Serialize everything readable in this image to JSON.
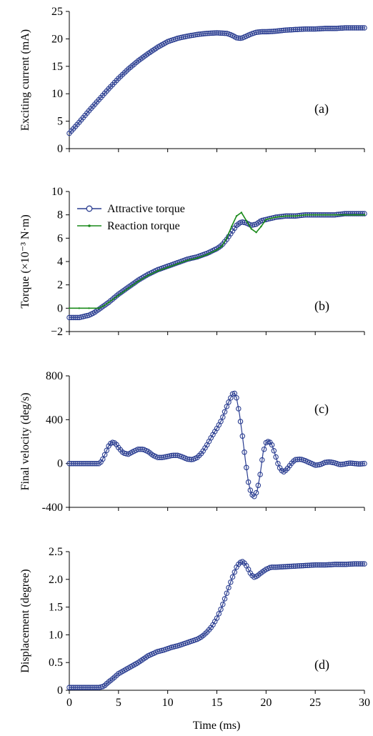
{
  "x_axis": {
    "label": "Time (ms)",
    "min": 0,
    "max": 30,
    "ticks": [
      0,
      5,
      10,
      15,
      20,
      25,
      30
    ]
  },
  "colors": {
    "attractive": "#2b3e91",
    "reaction": "#1a8a1a"
  },
  "chart_data": [
    {
      "type": "scatter",
      "panel": "(a)",
      "ylabel": "Exciting current (mA)",
      "ylim": [
        0,
        25
      ],
      "yticks": [
        0,
        5,
        10,
        15,
        20,
        25
      ],
      "ytick_labels": [
        "0",
        "5",
        "10",
        "15",
        "20",
        "25"
      ],
      "series": [
        {
          "style": "circles-line",
          "x": [
            0,
            0.5,
            1,
            2,
            3,
            4,
            5,
            6,
            7,
            8,
            9,
            10,
            11,
            12,
            13,
            14,
            15,
            16,
            16.5,
            17,
            17.5,
            18,
            18.5,
            19,
            19.5,
            20,
            21,
            22,
            23,
            24,
            25,
            26,
            27,
            28,
            29,
            30
          ],
          "y": [
            2.8,
            3.8,
            4.8,
            6.9,
            8.9,
            10.9,
            12.8,
            14.5,
            16.0,
            17.3,
            18.5,
            19.5,
            20.1,
            20.5,
            20.8,
            21.0,
            21.1,
            21.0,
            20.7,
            20.2,
            20.1,
            20.5,
            20.9,
            21.2,
            21.3,
            21.3,
            21.4,
            21.6,
            21.7,
            21.8,
            21.8,
            21.9,
            21.9,
            22.0,
            22.0,
            22.0
          ]
        }
      ]
    },
    {
      "type": "line",
      "panel": "(b)",
      "ylabel": "Torque (×10⁻³ N·m)",
      "ylim": [
        -2,
        10
      ],
      "yticks": [
        -2,
        0,
        2,
        4,
        6,
        8,
        10
      ],
      "ytick_labels": [
        "−2",
        "0",
        "2",
        "4",
        "6",
        "8",
        "10"
      ],
      "legend": "top-left",
      "series": [
        {
          "name": "Attractive torque",
          "style": "circles-line",
          "x": [
            0,
            1,
            2,
            2.5,
            3,
            3.5,
            4,
            5,
            6,
            7,
            8,
            9,
            10,
            11,
            12,
            13,
            14,
            15,
            15.5,
            16,
            16.5,
            17,
            17.5,
            18,
            18.5,
            19,
            19.5,
            20,
            21,
            22,
            23,
            24,
            25,
            26,
            27,
            28,
            29,
            30
          ],
          "y": [
            -0.8,
            -0.8,
            -0.6,
            -0.4,
            -0.1,
            0.2,
            0.5,
            1.2,
            1.8,
            2.4,
            2.9,
            3.3,
            3.6,
            3.9,
            4.2,
            4.4,
            4.7,
            5.1,
            5.4,
            5.9,
            6.5,
            7.1,
            7.4,
            7.3,
            7.1,
            7.2,
            7.5,
            7.6,
            7.8,
            7.9,
            7.9,
            8.0,
            8.0,
            8.0,
            8.0,
            8.1,
            8.1,
            8.1
          ]
        },
        {
          "name": "Reaction torque",
          "style": "line",
          "x": [
            0,
            1,
            2,
            3,
            3.5,
            4,
            5,
            6,
            7,
            8,
            9,
            10,
            11,
            12,
            13,
            14,
            15,
            15.5,
            16,
            16.5,
            17,
            17.5,
            18,
            18.5,
            19,
            19.5,
            20,
            21,
            22,
            23,
            24,
            25,
            26,
            27,
            28,
            29,
            30
          ],
          "y": [
            0,
            0,
            0,
            0,
            0.2,
            0.5,
            1.1,
            1.7,
            2.3,
            2.8,
            3.2,
            3.5,
            3.8,
            4.1,
            4.3,
            4.6,
            5.0,
            5.3,
            6.0,
            7.0,
            7.9,
            8.2,
            7.5,
            6.8,
            6.5,
            7.0,
            7.6,
            7.8,
            7.9,
            7.9,
            8.0,
            8.0,
            8.0,
            8.0,
            8.0,
            8.0,
            8.0
          ]
        }
      ]
    },
    {
      "type": "scatter",
      "panel": "(c)",
      "ylabel": "Final velocity (deg/s)",
      "ylim": [
        -400,
        800
      ],
      "yticks": [
        -400,
        0,
        400,
        800
      ],
      "ytick_labels": [
        "-400",
        "0",
        "400",
        "800"
      ],
      "series": [
        {
          "style": "circles-line",
          "x": [
            0,
            1,
            2,
            3,
            3.3,
            3.6,
            4,
            4.3,
            4.7,
            5,
            5.5,
            6,
            6.5,
            7,
            7.5,
            8,
            8.5,
            9,
            9.5,
            10,
            10.5,
            11,
            11.5,
            12,
            12.5,
            13,
            13.5,
            14,
            14.5,
            15,
            15.5,
            16,
            16.3,
            16.6,
            16.8,
            17,
            17.3,
            17.6,
            17.9,
            18.2,
            18.5,
            18.8,
            19.1,
            19.4,
            19.7,
            20,
            20.3,
            20.6,
            20.9,
            21.2,
            21.5,
            21.8,
            22.1,
            22.4,
            22.7,
            23,
            23.5,
            24,
            24.5,
            25,
            25.5,
            26,
            26.5,
            27,
            27.5,
            28,
            28.5,
            29,
            29.5,
            30
          ],
          "y": [
            0,
            0,
            0,
            0,
            20,
            80,
            160,
            195,
            185,
            145,
            95,
            85,
            110,
            130,
            130,
            110,
            75,
            55,
            55,
            65,
            75,
            75,
            60,
            40,
            35,
            55,
            100,
            170,
            250,
            320,
            400,
            520,
            580,
            635,
            640,
            600,
            450,
            250,
            30,
            -170,
            -280,
            -300,
            -250,
            -100,
            100,
            190,
            205,
            170,
            90,
            0,
            -60,
            -75,
            -55,
            -20,
            15,
            35,
            40,
            25,
            5,
            -15,
            -10,
            10,
            15,
            5,
            -10,
            -5,
            5,
            0,
            -5,
            0
          ]
        }
      ]
    },
    {
      "type": "scatter",
      "panel": "(d)",
      "ylabel": "Displacement (degree)",
      "ylim": [
        0,
        2.5
      ],
      "yticks": [
        0,
        0.5,
        1.0,
        1.5,
        2.0,
        2.5
      ],
      "ytick_labels": [
        "0",
        "0.5",
        "1.0",
        "1.5",
        "2.0",
        "2.5"
      ],
      "series": [
        {
          "style": "circles-line",
          "x": [
            0,
            1,
            2,
            3,
            3.5,
            4,
            4.5,
            5,
            5.5,
            6,
            6.5,
            7,
            7.5,
            8,
            8.5,
            9,
            9.5,
            10,
            10.5,
            11,
            11.5,
            12,
            12.5,
            13,
            13.5,
            14,
            14.5,
            15,
            15.5,
            16,
            16.5,
            17,
            17.3,
            17.6,
            17.9,
            18.2,
            18.5,
            18.8,
            19.1,
            19.5,
            20,
            20.5,
            21,
            22,
            23,
            24,
            25,
            26,
            27,
            28,
            29,
            30
          ],
          "y": [
            0.05,
            0.05,
            0.05,
            0.05,
            0.07,
            0.15,
            0.22,
            0.3,
            0.35,
            0.4,
            0.45,
            0.5,
            0.56,
            0.62,
            0.66,
            0.7,
            0.72,
            0.75,
            0.78,
            0.8,
            0.83,
            0.86,
            0.89,
            0.92,
            0.97,
            1.05,
            1.15,
            1.3,
            1.5,
            1.75,
            2.0,
            2.22,
            2.3,
            2.32,
            2.28,
            2.18,
            2.08,
            2.04,
            2.06,
            2.12,
            2.18,
            2.22,
            2.22,
            2.23,
            2.24,
            2.25,
            2.26,
            2.26,
            2.27,
            2.27,
            2.28,
            2.28
          ]
        }
      ]
    }
  ]
}
